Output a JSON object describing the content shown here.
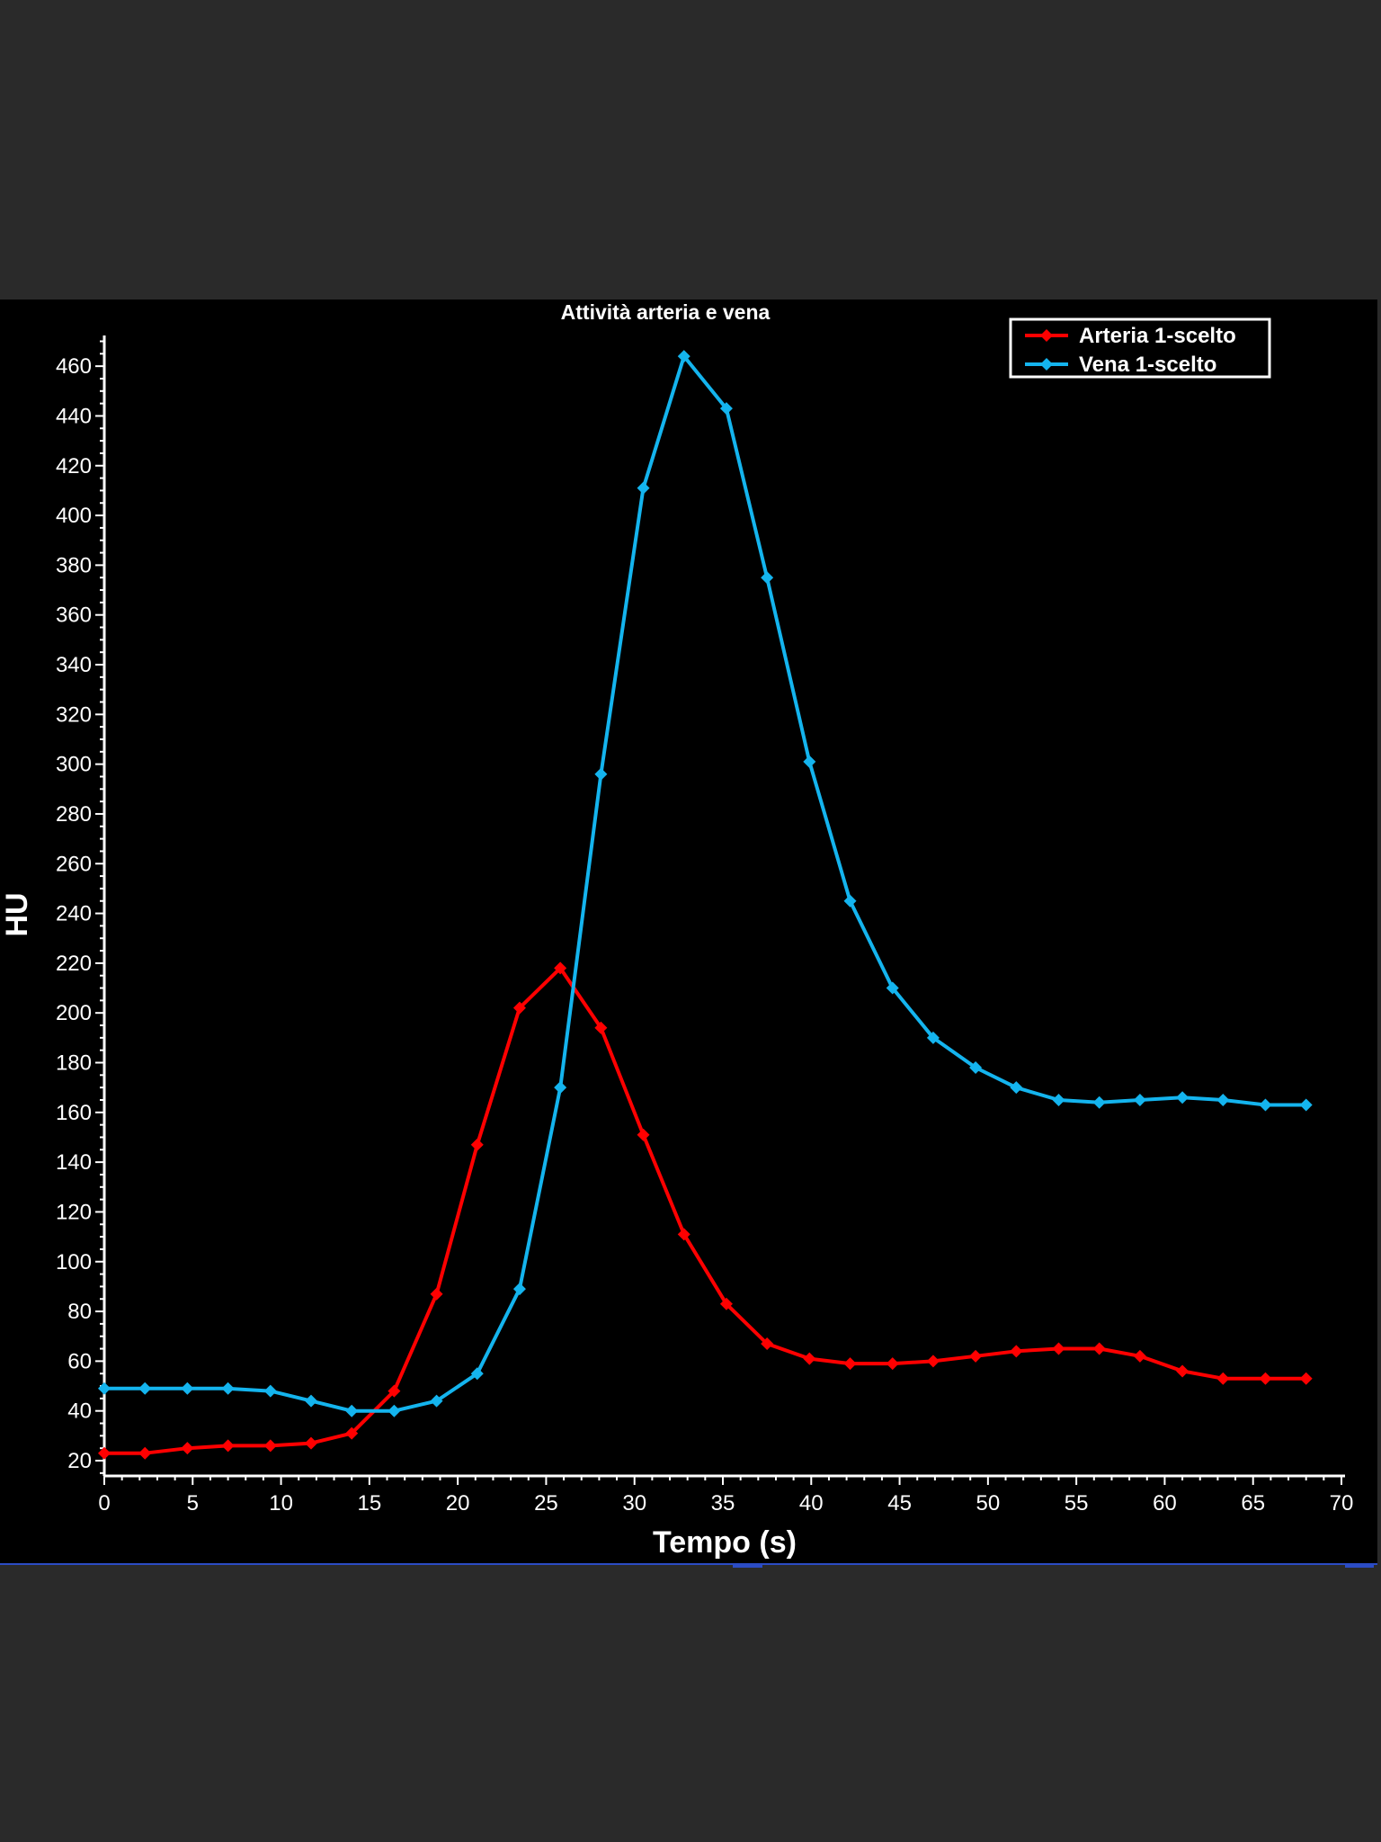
{
  "chart_data": {
    "type": "line",
    "title": "Attività arteria e vena",
    "xlabel": "Tempo (s)",
    "ylabel": "HU",
    "xlim": [
      0,
      70
    ],
    "ylim": [
      15,
      475
    ],
    "x_ticks": [
      0,
      5,
      10,
      15,
      20,
      25,
      30,
      35,
      40,
      45,
      50,
      55,
      60,
      65,
      70
    ],
    "y_ticks": [
      20,
      40,
      60,
      80,
      100,
      120,
      140,
      160,
      180,
      200,
      220,
      240,
      260,
      280,
      300,
      320,
      340,
      360,
      380,
      400,
      420,
      440,
      460
    ],
    "legend_position": "top-right",
    "grid": false,
    "series": [
      {
        "name": "Arteria  1-scelto",
        "color": "#ff0000",
        "x": [
          0,
          2.3,
          4.7,
          7.0,
          9.4,
          11.7,
          14.0,
          16.4,
          18.8,
          21.1,
          23.5,
          25.8,
          28.1,
          30.5,
          32.8,
          35.2,
          37.5,
          39.9,
          42.2,
          44.6,
          46.9,
          49.3,
          51.6,
          54.0,
          56.3,
          58.6,
          61.0,
          63.3,
          65.7,
          68.0
        ],
        "y": [
          23,
          23,
          25,
          26,
          26,
          27,
          31,
          48,
          87,
          147,
          202,
          218,
          194,
          151,
          111,
          83,
          67,
          61,
          59,
          59,
          60,
          62,
          64,
          65,
          65,
          62,
          56,
          53,
          53,
          53
        ]
      },
      {
        "name": "Vena  1-scelto",
        "color": "#14b4ee",
        "x": [
          0,
          2.3,
          4.7,
          7.0,
          9.4,
          11.7,
          14.0,
          16.4,
          18.8,
          21.1,
          23.5,
          25.8,
          28.1,
          30.5,
          32.8,
          35.2,
          37.5,
          39.9,
          42.2,
          44.6,
          46.9,
          49.3,
          51.6,
          54.0,
          56.3,
          58.6,
          61.0,
          63.3,
          65.7,
          68.0
        ],
        "y": [
          49,
          49,
          49,
          49,
          48,
          44,
          40,
          40,
          44,
          55,
          89,
          170,
          296,
          411,
          464,
          443,
          375,
          301,
          245,
          210,
          190,
          178,
          170,
          165,
          164,
          165,
          166,
          165,
          163,
          163
        ]
      }
    ]
  }
}
